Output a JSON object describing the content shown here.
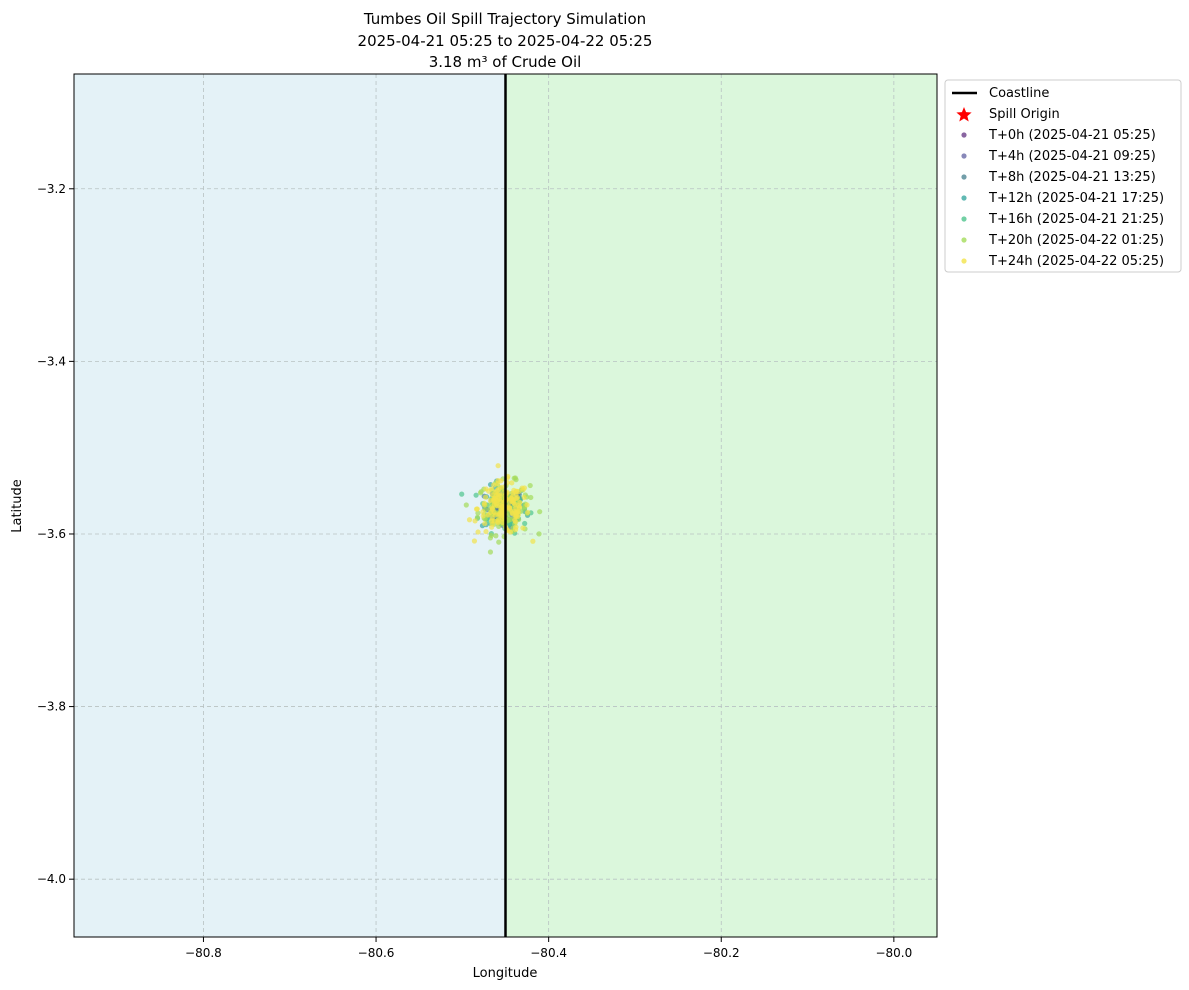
{
  "chart_data": {
    "type": "scatter",
    "title_lines": [
      "Tumbes Oil Spill Trajectory Simulation",
      "2025-04-21 05:25 to 2025-04-22 05:25",
      "3.18 m³ of Crude Oil"
    ],
    "xlabel": "Longitude",
    "ylabel": "Latitude",
    "xlim": [
      -80.95,
      -79.95
    ],
    "ylim": [
      -4.067,
      -3.067
    ],
    "xticks": [
      -80.8,
      -80.6,
      -80.4,
      -80.2,
      -80.0
    ],
    "xtick_labels": [
      "−80.8",
      "−80.6",
      "−80.4",
      "−80.2",
      "−80.0"
    ],
    "yticks": [
      -3.2,
      -3.4,
      -3.6,
      -3.8,
      -4.0
    ],
    "ytick_labels": [
      "−3.2",
      "−3.4",
      "−3.6",
      "−3.8",
      "−4.0"
    ],
    "grid": true,
    "sea_color": "#e4f2f7",
    "land_color": "#dbf7dc",
    "coastline": {
      "name": "Coastline",
      "longitude": -80.45,
      "color": "#000000"
    },
    "spill_origin": {
      "name": "Spill Origin",
      "lon": -80.45,
      "lat": -3.57,
      "color": "#ff0000"
    },
    "series": [
      {
        "name": "T+0h (2025-04-21 05:25)",
        "color": "#6b3f8a",
        "center": [
          -80.452,
          -3.569
        ],
        "spread": 0.004,
        "n": 12
      },
      {
        "name": "T+4h (2025-04-21 09:25)",
        "color": "#6a6aa8",
        "center": [
          -80.451,
          -3.569
        ],
        "spread": 0.008,
        "n": 20
      },
      {
        "name": "T+8h (2025-04-21 13:25)",
        "color": "#4f8694",
        "center": [
          -80.452,
          -3.57
        ],
        "spread": 0.011,
        "n": 35
      },
      {
        "name": "T+12h (2025-04-21 17:25)",
        "color": "#3aa8a0",
        "center": [
          -80.452,
          -3.571
        ],
        "spread": 0.013,
        "n": 50
      },
      {
        "name": "T+16h (2025-04-21 21:25)",
        "color": "#4fc48d",
        "center": [
          -80.452,
          -3.57
        ],
        "spread": 0.014,
        "n": 70
      },
      {
        "name": "T+20h (2025-04-22 01:25)",
        "color": "#a4dc5a",
        "center": [
          -80.452,
          -3.57
        ],
        "spread": 0.015,
        "n": 110
      },
      {
        "name": "T+24h (2025-04-22 05:25)",
        "color": "#f2e34a",
        "center": [
          -80.452,
          -3.57
        ],
        "spread": 0.015,
        "n": 150
      }
    ],
    "legend_position": "outside-upper-right"
  }
}
